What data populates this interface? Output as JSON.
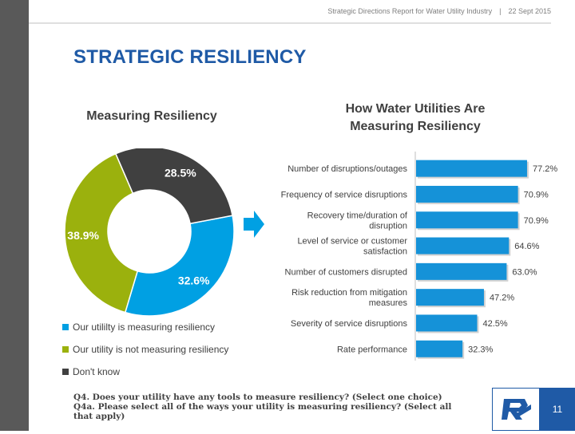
{
  "header": {
    "report": "Strategic Directions Report for Water Utility Industry",
    "separator": "|",
    "date": "22 Sept 2015"
  },
  "page_title": "STRATEGIC RESILIENCY",
  "footer": {
    "q4": "Q4. Does your utility have any tools to measure resiliency? (Select one choice)",
    "q4a": "Q4a. Please select all of the ways your utility is measuring resiliency? (Select all that apply)",
    "page_number": "11"
  },
  "colors": {
    "title_blue": "#1f5aa6",
    "measuring": "#00a0e3",
    "not_measuring": "#9bb10d",
    "dont_know": "#404040",
    "bar": "#1592d8"
  },
  "icons": {
    "arrow": "right-arrow-icon",
    "logo": "company-logo-icon"
  },
  "chart_data": [
    {
      "type": "pie",
      "title": "Measuring Resiliency",
      "categories": [
        "Our utililty is measuring resiliency",
        "Our utility is not measuring resiliency",
        "Don't know"
      ],
      "values": [
        32.6,
        38.9,
        28.5
      ],
      "data_labels": [
        "32.6%",
        "38.9%",
        "28.5%"
      ],
      "colors": [
        "#00a0e3",
        "#9bb10d",
        "#404040"
      ],
      "legend": "bottom"
    },
    {
      "type": "bar",
      "orientation": "horizontal",
      "title_lines": [
        "How Water Utilities Are",
        "Measuring Resiliency"
      ],
      "categories": [
        [
          "Number of disruptions/outages"
        ],
        [
          "Frequency of service disruptions"
        ],
        [
          "Recovery time/duration of",
          "disruption"
        ],
        [
          "Level of service or customer",
          "satisfaction"
        ],
        [
          "Number of customers disrupted"
        ],
        [
          "Risk reduction from mitigation",
          "measures"
        ],
        [
          "Severity of service disruptions"
        ],
        [
          "Rate performance"
        ]
      ],
      "values": [
        77.2,
        70.9,
        70.9,
        64.6,
        63.0,
        47.2,
        42.5,
        32.3
      ],
      "data_labels": [
        "77.2%",
        "70.9%",
        "70.9%",
        "64.6%",
        "63.0%",
        "47.2%",
        "42.5%",
        "32.3%"
      ],
      "xlim": [
        0,
        100
      ],
      "grid": false
    }
  ]
}
